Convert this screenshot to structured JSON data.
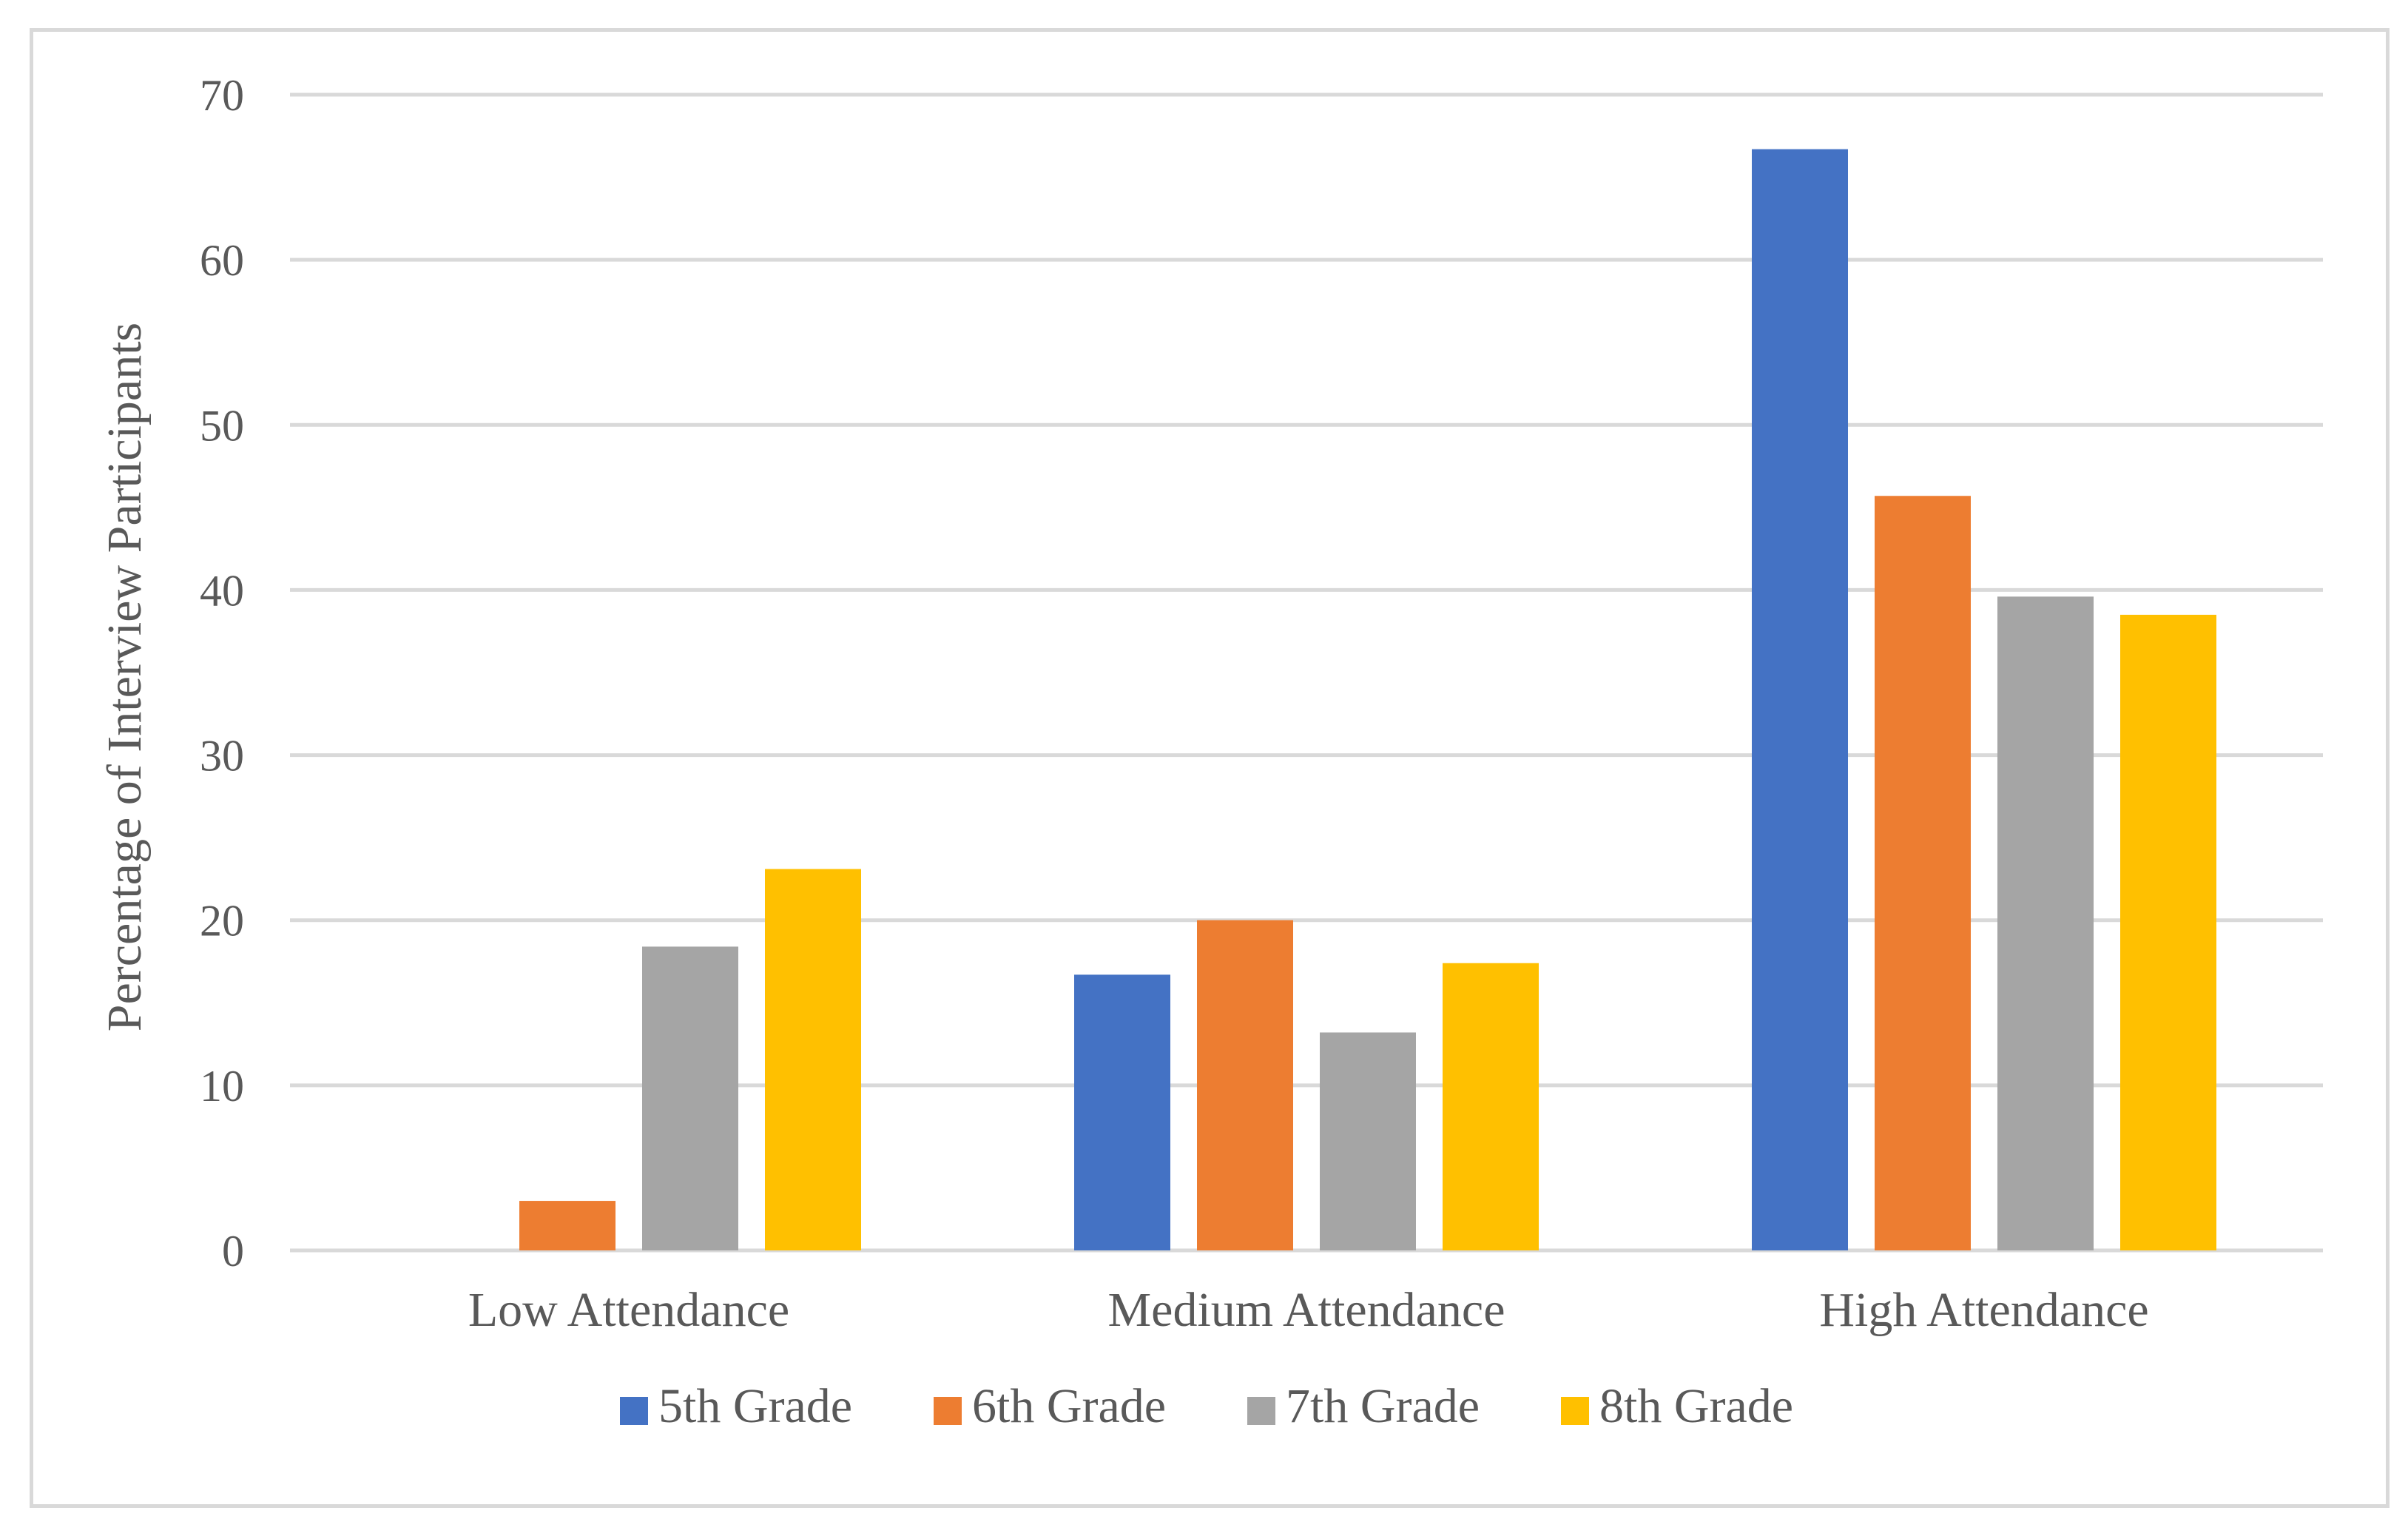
{
  "chart_data": {
    "type": "bar",
    "title": "",
    "xlabel": "",
    "ylabel": "Percentage of Interview Participants",
    "ylim": [
      0,
      70
    ],
    "yticks": [
      0,
      10,
      20,
      30,
      40,
      50,
      60,
      70
    ],
    "grid": true,
    "legend_position": "bottom",
    "categories": [
      "Low Attendance",
      "Medium Attendance",
      "High Attendance"
    ],
    "series": [
      {
        "name": "5th Grade",
        "color": "#4472c4",
        "values": [
          0,
          16.7,
          66.7
        ]
      },
      {
        "name": "6th Grade",
        "color": "#ed7d31",
        "values": [
          3,
          20,
          45.7
        ]
      },
      {
        "name": "7th Grade",
        "color": "#a5a5a5",
        "values": [
          18.4,
          13.2,
          39.6
        ]
      },
      {
        "name": "8th Grade",
        "color": "#ffc000",
        "values": [
          23.1,
          17.4,
          38.5
        ]
      }
    ]
  }
}
